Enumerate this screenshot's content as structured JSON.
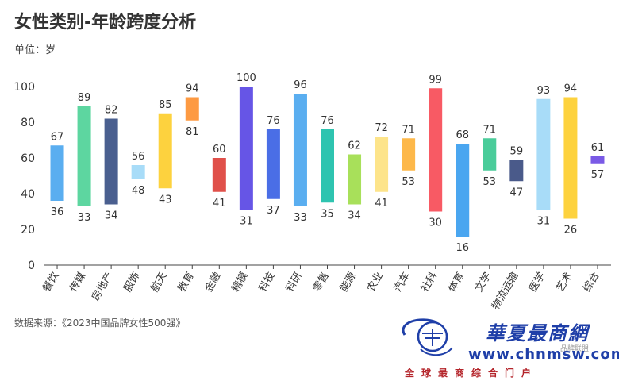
{
  "page": {
    "title": "女性类别-年龄跨度分析",
    "unit_label": "单位：岁",
    "source": "数据来源：《2023中国品牌女性500强》"
  },
  "watermark": {
    "brand": "華夏最商網",
    "url": "www.chnmsw.com",
    "slogan": "全球最商综合门户",
    "small": "品牌联盟"
  },
  "chart_data": {
    "type": "floating-bar",
    "title": "女性类别-年龄跨度分析",
    "ylabel": "单位：岁",
    "ylim": [
      0,
      100
    ],
    "yticks": [
      0,
      20,
      40,
      60,
      80,
      100
    ],
    "grid": false,
    "categories": [
      "餐饮",
      "传媒",
      "房地产",
      "服饰",
      "航天",
      "教育",
      "金融",
      "精模",
      "科技",
      "科研",
      "零售",
      "能源",
      "农业",
      "汽车",
      "社科",
      "体育",
      "文学",
      "物流运输",
      "医学",
      "艺术",
      "综合"
    ],
    "max": [
      67,
      89,
      82,
      56,
      85,
      94,
      60,
      100,
      76,
      96,
      76,
      62,
      72,
      71,
      99,
      68,
      71,
      59,
      93,
      94,
      61
    ],
    "min": [
      36,
      33,
      34,
      48,
      43,
      81,
      41,
      31,
      37,
      33,
      35,
      34,
      41,
      53,
      30,
      16,
      53,
      47,
      31,
      26,
      57
    ],
    "colors": [
      "#5aaef0",
      "#5dd6a0",
      "#4a5f8f",
      "#a8dcf8",
      "#fdd23e",
      "#fd9a42",
      "#e0504a",
      "#6655e6",
      "#4a6ee6",
      "#5aaef0",
      "#2ec4b0",
      "#a8e05a",
      "#fde48a",
      "#fdb84a",
      "#f85a64",
      "#4aa6f0",
      "#4acc9a",
      "#4a5a8a",
      "#a8dcf8",
      "#fdd23e",
      "#7a5ae6"
    ]
  }
}
